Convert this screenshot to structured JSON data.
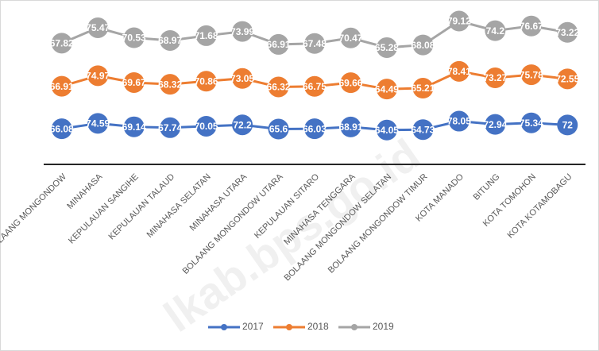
{
  "chart_data": {
    "type": "line",
    "stacked": true,
    "categories": [
      "BOLAANG MONGONDOW",
      "MINAHASA",
      "KEPULAUAN SANGIHE",
      "KEPULAUAN TALAUD",
      "MINAHASA SELATAN",
      "MINAHASA UTARA",
      "BOLAANG MONGONDOW UTARA",
      "KEPULAUAN SITARO",
      "MINAHASA TENGGARA",
      "BOLAANG MONGONDOW SELATAN",
      "BOLAANG MONGONDOW TIMUR",
      "KOTA MANADO",
      "BITUNG",
      "KOTA TOMOHON",
      "KOTA KOTAMOBAGU"
    ],
    "series": [
      {
        "name": "2017",
        "color": "#4472c4",
        "values": [
          66.08,
          74.59,
          69.14,
          67.74,
          70.05,
          72.2,
          65.6,
          66.03,
          68.91,
          64.05,
          64.73,
          78.05,
          72.94,
          75.34,
          72
        ]
      },
      {
        "name": "2018",
        "color": "#ed7d31",
        "values": [
          66.91,
          74.97,
          69.67,
          68.32,
          70.86,
          73.05,
          66.32,
          66.75,
          69.66,
          64.49,
          65.21,
          78.41,
          73.27,
          75.78,
          72.55
        ]
      },
      {
        "name": "2019",
        "color": "#a5a5a5",
        "values": [
          67.82,
          75.47,
          70.53,
          68.97,
          71.68,
          73.99,
          66.91,
          67.48,
          70.47,
          65.28,
          68.08,
          79.12,
          74.2,
          76.67,
          73.22
        ]
      }
    ],
    "ylim": [
      10,
      250
    ],
    "legend": "bottom",
    "watermark": "lkab.bps.go.id"
  }
}
